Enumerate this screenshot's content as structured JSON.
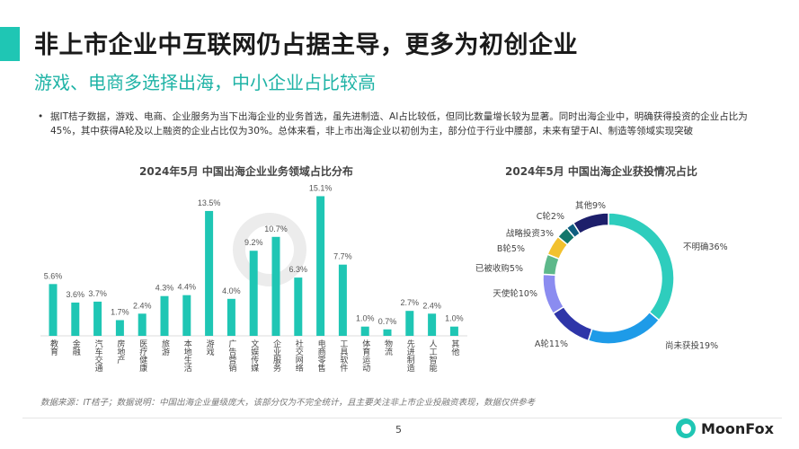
{
  "header": {
    "title": "非上市企业中互联网仍占据主导，更多为初创企业",
    "subtitle": "游戏、电商多选择出海，中小企业占比较高"
  },
  "bullet": "据IT桔子数据，游戏、电商、企业服务为当下出海企业的业务首选，虽先进制造、AI占比较低，但同比数量增长较为显著。同时出海企业中，明确获得投资的企业占比为45%，其中获得A轮及以上融资的企业占比仅为30%。总体来看，非上市出海企业以初创为主，部分位于行业中腰部，未来有望于AI、制造等领域实现突破",
  "watermark": "MoonFox",
  "chart_data": [
    {
      "type": "bar",
      "title": "2024年5月 中国出海企业业务领域占比分布",
      "unit": "%",
      "color": "#1fc6b4",
      "categories": [
        "教育",
        "金融",
        "汽车交通",
        "房地产",
        "医疗健康",
        "旅游",
        "本地生活",
        "游戏",
        "广告营销",
        "文娱传媒",
        "企业服务",
        "社交网络",
        "电商零售",
        "工具软件",
        "体育运动",
        "物流",
        "先进制造",
        "人工智能",
        "其他"
      ],
      "values": [
        5.6,
        3.6,
        3.7,
        1.7,
        2.4,
        4.3,
        4.4,
        13.5,
        4.0,
        9.2,
        10.7,
        6.3,
        15.1,
        7.7,
        1.0,
        0.7,
        2.7,
        2.4,
        1.0
      ],
      "labels": [
        "5.6%",
        "3.6%",
        "3.7%",
        "1.7%",
        "2.4%",
        "4.3%",
        "4.4%",
        "13.5%",
        "4.0%",
        "9.2%",
        "10.7%",
        "6.3%",
        "15.1%",
        "7.7%",
        "1.0%",
        "0.7%",
        "2.7%",
        "2.4%",
        "1.0%"
      ]
    },
    {
      "type": "pie",
      "title": "2024年5月 中国出海企业获投情况占比",
      "donut": true,
      "slices": [
        {
          "label": "不明确36%",
          "value": 36,
          "color": "#2ecdbd"
        },
        {
          "label": "尚未获投19%",
          "value": 19,
          "color": "#1e9be8"
        },
        {
          "label": "A轮11%",
          "value": 11,
          "color": "#2e35a8"
        },
        {
          "label": "天使轮10%",
          "value": 10,
          "color": "#8b8cf0"
        },
        {
          "label": "已被收购5%",
          "value": 5,
          "color": "#5db88a"
        },
        {
          "label": "B轮5%",
          "value": 5,
          "color": "#f2c12e"
        },
        {
          "label": "战略投资3%",
          "value": 3,
          "color": "#13776b"
        },
        {
          "label": "C轮2%",
          "value": 2,
          "color": "#0f5e80"
        },
        {
          "label": "其他9%",
          "value": 9,
          "color": "#1d1f6b"
        }
      ]
    }
  ],
  "footer": {
    "source": "数据来源：IT桔子；数据说明：中国出海企业量级庞大，该部分仅为不完全统计，且主要关注非上市企业投融资表现，数据仅供参考",
    "page": "5",
    "logo": "MoonFox"
  }
}
